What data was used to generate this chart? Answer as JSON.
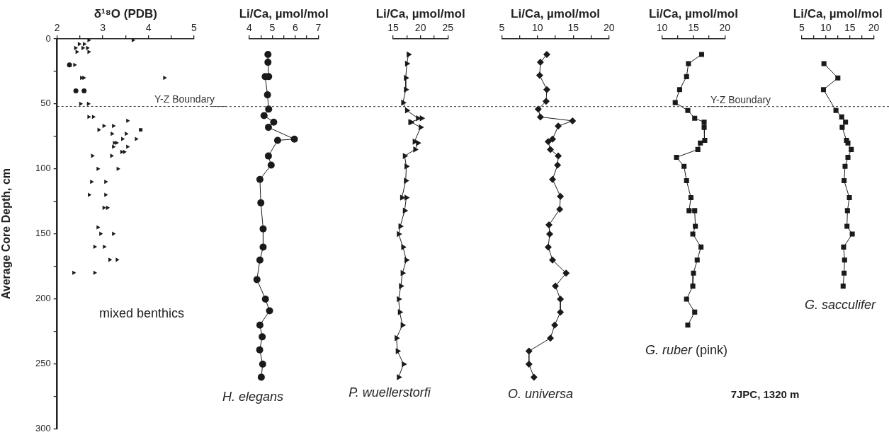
{
  "chart_data": [
    {
      "type": "scatter",
      "orientation": "horizontal",
      "xlabel": "δ¹⁸O (PDB)",
      "ylabel": "Average Core Depth, cm",
      "xlim": [
        2,
        5
      ],
      "xticks": [
        2,
        {
          "value": 2.5,
          "label": null
        },
        3,
        {
          "value": 3.5,
          "label": null
        },
        4,
        {
          "value": 4.5,
          "label": null
        },
        5
      ],
      "ylim": [
        300,
        0
      ],
      "yticks": [
        0,
        {
          "value": 25,
          "label": null
        },
        50,
        {
          "value": 75,
          "label": null
        },
        100,
        {
          "value": 125,
          "label": null
        },
        150,
        {
          "value": 175,
          "label": null
        },
        200,
        {
          "value": 225,
          "label": null
        },
        250,
        {
          "value": 275,
          "label": null
        },
        300
      ],
      "series": [
        {
          "color": "#1a1a1a",
          "marker": "triangle",
          "x": [
            1,
            1,
            4,
            4,
            7,
            7,
            7,
            10,
            10,
            20,
            30,
            30,
            30,
            50,
            50,
            60,
            60,
            63,
            67,
            67,
            70,
            73,
            73,
            77,
            77,
            80,
            80,
            83,
            83,
            87,
            87,
            90,
            90,
            100,
            100,
            110,
            110,
            120,
            120,
            130,
            130,
            145,
            150,
            150,
            160,
            160,
            170,
            170,
            180,
            180
          ],
          "values": [
            2.69,
            3.66,
            2.48,
            2.59,
            2.4,
            2.56,
            2.66,
            2.43,
            2.69,
            2.38,
            2.53,
            2.58,
            4.35,
            2.51,
            2.68,
            2.69,
            2.79,
            3.54,
            3.02,
            3.23,
            2.91,
            3.2,
            3.51,
            3.43,
            3.73,
            3.25,
            3.3,
            3.23,
            3.54,
            3.41,
            3.47,
            2.77,
            3.19,
            2.89,
            3.33,
            2.75,
            3.06,
            2.7,
            3.06,
            3.02,
            3.1,
            2.89,
            2.95,
            3.23,
            2.82,
            3.03,
            3.15,
            3.31,
            2.36,
            2.82
          ]
        },
        {
          "color": "#1a1a1a",
          "marker": "circle",
          "x": [
            20,
            40,
            40
          ],
          "values": [
            2.27,
            2.41,
            2.59
          ]
        },
        {
          "color": "#1a1a1a",
          "marker": "square",
          "x": [
            70
          ],
          "values": [
            3.83
          ]
        }
      ],
      "ref_lines": [
        {
          "axis": "y",
          "value": 52,
          "label": "Y-Z Boundary",
          "line_style": "dashed"
        }
      ],
      "annotations": [
        "mixed benthics"
      ]
    },
    {
      "type": "line",
      "orientation": "horizontal",
      "tick_labels": "x",
      "xlabel": "Li/Ca, µmol/mol",
      "xlim": [
        4,
        7
      ],
      "xticks": [
        4,
        {
          "value": 4.5,
          "label": null
        },
        5,
        {
          "value": 5.5,
          "label": null
        },
        6,
        {
          "value": 6.5,
          "label": null
        },
        7
      ],
      "ylim": [
        300,
        0
      ],
      "series": [
        {
          "color": "#1a1a1a",
          "marker": "circle",
          "x": [
            12,
            18,
            29,
            29,
            43,
            54,
            59,
            64,
            68,
            77,
            78,
            90,
            97,
            108,
            126,
            146,
            160,
            170,
            185,
            200,
            209,
            220,
            229,
            239,
            250,
            260
          ],
          "values": [
            4.81,
            4.81,
            4.84,
            4.69,
            4.79,
            4.84,
            4.64,
            5.06,
            4.83,
            5.96,
            5.23,
            4.83,
            4.95,
            4.46,
            4.5,
            4.6,
            4.6,
            4.46,
            4.33,
            4.7,
            4.88,
            4.46,
            4.56,
            4.45,
            4.58,
            4.52
          ]
        }
      ],
      "ref_lines": [
        {
          "axis": "y",
          "value": 52,
          "line_style": "dashed"
        }
      ],
      "annotations": [
        "H. elegans"
      ]
    },
    {
      "type": "line",
      "orientation": "horizontal",
      "tick_labels": "x",
      "xlabel": "Li/Ca, µmol/mol",
      "xlim": [
        15,
        25
      ],
      "xticks": [
        15,
        {
          "value": 17.5,
          "label": null
        },
        20,
        {
          "value": 22.5,
          "label": null
        },
        25
      ],
      "ylim": [
        300,
        0
      ],
      "series": [
        {
          "color": "#1a1a1a",
          "marker": "triangle",
          "x": [
            12,
            19,
            30,
            39,
            49,
            55,
            61,
            61,
            64,
            64,
            68,
            79,
            80,
            85,
            90,
            98,
            109,
            122,
            122,
            132,
            144,
            150,
            160,
            170,
            180,
            190,
            200,
            210,
            220,
            230,
            240,
            250,
            260
          ],
          "values": [
            17.8,
            17.5,
            17.3,
            17.3,
            16.8,
            17.5,
            19.5,
            20.2,
            18.1,
            18.3,
            20.0,
            18.9,
            19.5,
            19.0,
            17.1,
            17.4,
            17.3,
            16.6,
            17.4,
            17.1,
            16.3,
            16.0,
            16.8,
            17.4,
            16.7,
            16.4,
            16.0,
            16.2,
            16.7,
            15.6,
            15.8,
            16.9,
            16.0
          ]
        }
      ],
      "ref_lines": [
        {
          "axis": "y",
          "value": 52,
          "line_style": "dashed"
        }
      ],
      "annotations": [
        "P. wuellerstorfi"
      ]
    },
    {
      "type": "line",
      "orientation": "horizontal",
      "tick_labels": "x",
      "xlabel": "Li/Ca, µmol/mol",
      "xlim": [
        5,
        20
      ],
      "xticks": [
        5,
        {
          "value": 7.5,
          "label": null
        },
        10,
        {
          "value": 12.5,
          "label": null
        },
        15,
        {
          "value": 17.5,
          "label": null
        },
        20
      ],
      "ylim": [
        300,
        0
      ],
      "series": [
        {
          "color": "#1a1a1a",
          "marker": "diamond",
          "x": [
            12,
            18,
            28,
            39,
            48,
            54,
            60,
            63,
            67,
            77,
            79,
            85,
            90,
            97,
            108,
            121,
            131,
            143,
            150,
            160,
            170,
            180,
            190,
            200,
            210,
            220,
            230,
            240,
            250,
            260
          ],
          "values": [
            11.3,
            10.4,
            10.3,
            11.3,
            11.2,
            10.1,
            10.4,
            14.9,
            12.9,
            12.1,
            11.5,
            11.8,
            12.9,
            12.8,
            12.1,
            13.2,
            13.1,
            11.6,
            11.7,
            11.5,
            12.1,
            14.0,
            12.5,
            13.2,
            13.2,
            12.4,
            11.8,
            8.8,
            8.8,
            9.5
          ]
        }
      ],
      "ref_lines": [
        {
          "axis": "y",
          "value": 52,
          "line_style": "dashed"
        }
      ],
      "annotations": [
        "O. universa"
      ]
    },
    {
      "type": "line",
      "orientation": "horizontal",
      "tick_labels": "x",
      "xlabel": "Li/Ca, µmol/mol",
      "xlim": [
        10,
        20
      ],
      "xticks": [
        10,
        {
          "value": 12.5,
          "label": null
        },
        15,
        {
          "value": 17.5,
          "label": null
        },
        20
      ],
      "ylim": [
        300,
        0
      ],
      "series": [
        {
          "color": "#1a1a1a",
          "marker": "square",
          "x": [
            12,
            19,
            29,
            39,
            49,
            55,
            61,
            64,
            68,
            78,
            80,
            85,
            91,
            98,
            109,
            122,
            132,
            132,
            144,
            150,
            160,
            170,
            180,
            190,
            200,
            210,
            220
          ],
          "values": [
            16.3,
            14.2,
            13.9,
            12.8,
            12.1,
            14.1,
            15.2,
            16.7,
            16.7,
            16.8,
            16.1,
            15.7,
            12.3,
            13.5,
            13.9,
            14.6,
            14.3,
            15.2,
            15.3,
            14.9,
            16.2,
            15.6,
            15.0,
            14.9,
            13.9,
            15.2,
            14.1
          ]
        }
      ],
      "ref_lines": [
        {
          "axis": "y",
          "value": 52,
          "line_style": "dashed"
        }
      ],
      "annotations": [
        "G. ruber",
        "(pink)"
      ]
    },
    {
      "type": "line",
      "orientation": "horizontal",
      "tick_labels": "x",
      "xlabel": "Li/Ca, µmol/mol",
      "xlim": [
        5,
        20
      ],
      "xticks": [
        5,
        {
          "value": 7.5,
          "label": null
        },
        10,
        {
          "value": 12.5,
          "label": null
        },
        15,
        {
          "value": 17.5,
          "label": null
        },
        20
      ],
      "ylim": [
        300,
        0
      ],
      "series": [
        {
          "color": "#1a1a1a",
          "marker": "square",
          "x": [
            19,
            30,
            39,
            55,
            60,
            64,
            68,
            78,
            80,
            85,
            91,
            98,
            109,
            122,
            132,
            144,
            150,
            160,
            170,
            180,
            190
          ],
          "values": [
            9.6,
            12.5,
            9.5,
            12.1,
            13.3,
            14.1,
            13.4,
            14.3,
            14.6,
            15.3,
            14.6,
            14.0,
            13.8,
            14.9,
            14.5,
            14.4,
            15.5,
            13.7,
            13.9,
            13.8,
            13.6
          ]
        }
      ],
      "ref_lines": [
        {
          "axis": "y",
          "value": 52,
          "label": "Y-Z Boundary",
          "line_style": "dashed"
        }
      ],
      "annotations": [
        "G. sacculifer",
        "7JPC, 1320 m"
      ]
    }
  ]
}
